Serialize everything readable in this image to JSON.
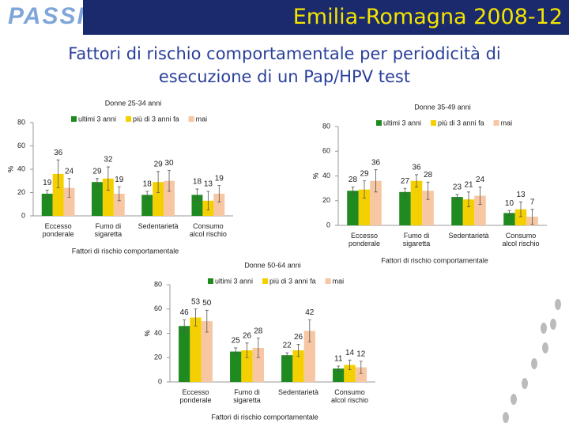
{
  "header": {
    "logo": "PASSI",
    "title": "Emilia-Romagna 2008-12",
    "subtitle": "Fattori di rischio comportamentale per periodicità di esecuzione di un Pap/HPV test"
  },
  "chart_data": [
    {
      "type": "bar",
      "title": "Donne 25-34 anni",
      "ylabel": "%",
      "xlabel": "Fattori di rischio comportamentale",
      "categories": [
        "Eccesso ponderale",
        "Fumo di sigaretta",
        "Sedentarietà",
        "Consumo alcol rischio"
      ],
      "series": [
        {
          "name": "ultimi 3 anni",
          "color": "#1f8a1f",
          "values": [
            19,
            29,
            18,
            18
          ],
          "errors": [
            3,
            3,
            3,
            5
          ]
        },
        {
          "name": "più di 3 anni fa",
          "color": "#f5d000",
          "values": [
            36,
            32,
            29,
            13
          ],
          "errors": [
            12,
            10,
            9,
            8
          ]
        },
        {
          "name": "mai",
          "color": "#f7c6a3",
          "values": [
            24,
            19,
            30,
            19
          ],
          "errors": [
            8,
            6,
            9,
            7
          ]
        }
      ],
      "ylim": [
        0,
        80
      ],
      "yticks": [
        0,
        20,
        40,
        60,
        80
      ]
    },
    {
      "type": "bar",
      "title": "Donne 35-49 anni",
      "ylabel": "%",
      "xlabel": "Fattori di rischio comportamentale",
      "categories": [
        "Eccesso ponderale",
        "Fumo di sigaretta",
        "Sedentarietà",
        "Consumo alcol rischio"
      ],
      "series": [
        {
          "name": "ultimi 3 anni",
          "color": "#1f8a1f",
          "values": [
            28,
            27,
            23,
            10
          ],
          "errors": [
            3,
            3,
            2,
            2
          ]
        },
        {
          "name": "più di 3 anni fa",
          "color": "#f5d000",
          "values": [
            29,
            36,
            21,
            13
          ],
          "errors": [
            7,
            5,
            6,
            6
          ]
        },
        {
          "name": "mai",
          "color": "#f7c6a3",
          "values": [
            36,
            28,
            24,
            7
          ],
          "errors": [
            9,
            7,
            7,
            6
          ]
        }
      ],
      "ylim": [
        0,
        80
      ],
      "yticks": [
        0,
        20,
        40,
        60,
        80
      ]
    },
    {
      "type": "bar",
      "title": "Donne 50-64 anni",
      "ylabel": "%",
      "xlabel": "Fattori di rischio comportamentale",
      "categories": [
        "Eccesso ponderale",
        "Fumo di sigaretta",
        "Sedentarietà",
        "Consumo alcol rischio"
      ],
      "series": [
        {
          "name": "ultimi 3 anni",
          "color": "#1f8a1f",
          "values": [
            46,
            25,
            22,
            11
          ],
          "errors": [
            5,
            3,
            2,
            2
          ]
        },
        {
          "name": "più di 3 anni fa",
          "color": "#f5d000",
          "values": [
            53,
            26,
            26,
            14
          ],
          "errors": [
            7,
            6,
            5,
            4
          ]
        },
        {
          "name": "mai",
          "color": "#f7c6a3",
          "values": [
            50,
            28,
            42,
            12
          ],
          "errors": [
            9,
            8,
            9,
            5
          ]
        }
      ],
      "ylim": [
        0,
        80
      ],
      "yticks": [
        0,
        20,
        40,
        60,
        80
      ]
    }
  ]
}
